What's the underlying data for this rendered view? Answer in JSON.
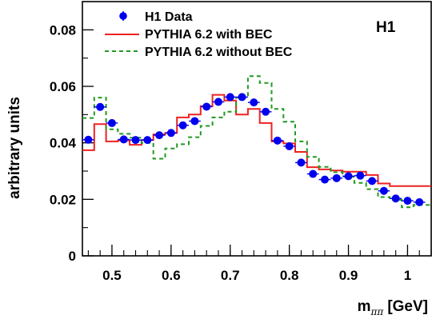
{
  "chart_data": {
    "type": "line",
    "ylabel": "arbitrary units",
    "xlabel": {
      "main": "m",
      "subscript": "ππ",
      "unit": "[GeV]"
    },
    "experiment_label": "H1",
    "xlim": [
      0.45,
      1.04
    ],
    "ylim": [
      0,
      0.09
    ],
    "x_ticks": [
      {
        "value": 0.5,
        "label": "0.5"
      },
      {
        "value": 0.6,
        "label": "0.6"
      },
      {
        "value": 0.7,
        "label": "0.7"
      },
      {
        "value": 0.8,
        "label": "0.8"
      },
      {
        "value": 0.9,
        "label": "0.9"
      },
      {
        "value": 1.0,
        "label": "1"
      }
    ],
    "y_ticks": [
      {
        "value": 0,
        "label": "0"
      },
      {
        "value": 0.02,
        "label": "0.02"
      },
      {
        "value": 0.04,
        "label": "0.04"
      },
      {
        "value": 0.06,
        "label": "0.06"
      },
      {
        "value": 0.08,
        "label": "0.08"
      }
    ],
    "legend_position": "top-left",
    "series": [
      {
        "name": "H1 Data",
        "style": "points",
        "color": "#0000ee",
        "x": [
          0.46,
          0.48,
          0.5,
          0.52,
          0.54,
          0.56,
          0.58,
          0.6,
          0.62,
          0.64,
          0.66,
          0.68,
          0.7,
          0.72,
          0.74,
          0.76,
          0.78,
          0.8,
          0.82,
          0.84,
          0.86,
          0.88,
          0.9,
          0.92,
          0.94,
          0.96,
          0.98,
          1.0,
          1.02
        ],
        "y": [
          0.0411,
          0.0527,
          0.047,
          0.0412,
          0.041,
          0.041,
          0.0427,
          0.0435,
          0.0462,
          0.0477,
          0.0528,
          0.0545,
          0.0562,
          0.0562,
          0.0543,
          0.051,
          0.0408,
          0.0388,
          0.033,
          0.029,
          0.027,
          0.0275,
          0.0282,
          0.0284,
          0.0265,
          0.023,
          0.0203,
          0.0195,
          0.019
        ]
      },
      {
        "name": "PYTHIA 6.2 with BEC",
        "style": "step-solid",
        "color": "#ee2222",
        "edges": [
          0.45,
          0.47,
          0.49,
          0.51,
          0.53,
          0.55,
          0.57,
          0.59,
          0.61,
          0.63,
          0.65,
          0.67,
          0.69,
          0.71,
          0.73,
          0.75,
          0.77,
          0.79,
          0.81,
          0.83,
          0.85,
          0.87,
          0.89,
          0.91,
          0.93,
          0.95,
          0.97,
          0.99,
          1.01,
          1.04
        ],
        "values": [
          0.0374,
          0.0466,
          0.0405,
          0.0408,
          0.0393,
          0.041,
          0.043,
          0.0435,
          0.049,
          0.05,
          0.053,
          0.057,
          0.055,
          0.05,
          0.052,
          0.047,
          0.0405,
          0.0398,
          0.0368,
          0.0314,
          0.0306,
          0.0302,
          0.0298,
          0.0298,
          0.0286,
          0.0256,
          0.0247,
          0.0247,
          0.0247
        ]
      },
      {
        "name": "PYTHIA 6.2 without BEC",
        "style": "step-dashed",
        "color": "#229922",
        "edges": [
          0.45,
          0.47,
          0.49,
          0.51,
          0.53,
          0.55,
          0.57,
          0.59,
          0.61,
          0.63,
          0.65,
          0.67,
          0.69,
          0.71,
          0.73,
          0.75,
          0.77,
          0.79,
          0.81,
          0.83,
          0.85,
          0.87,
          0.89,
          0.91,
          0.93,
          0.95,
          0.97,
          0.99,
          1.01,
          1.04
        ],
        "values": [
          0.0488,
          0.056,
          0.0448,
          0.0432,
          0.0418,
          0.04,
          0.0344,
          0.038,
          0.0395,
          0.042,
          0.046,
          0.049,
          0.051,
          0.056,
          0.0636,
          0.0612,
          0.052,
          0.0475,
          0.0405,
          0.035,
          0.0315,
          0.0296,
          0.028,
          0.0258,
          0.0236,
          0.0208,
          0.0198,
          0.0172,
          0.018
        ]
      }
    ]
  }
}
